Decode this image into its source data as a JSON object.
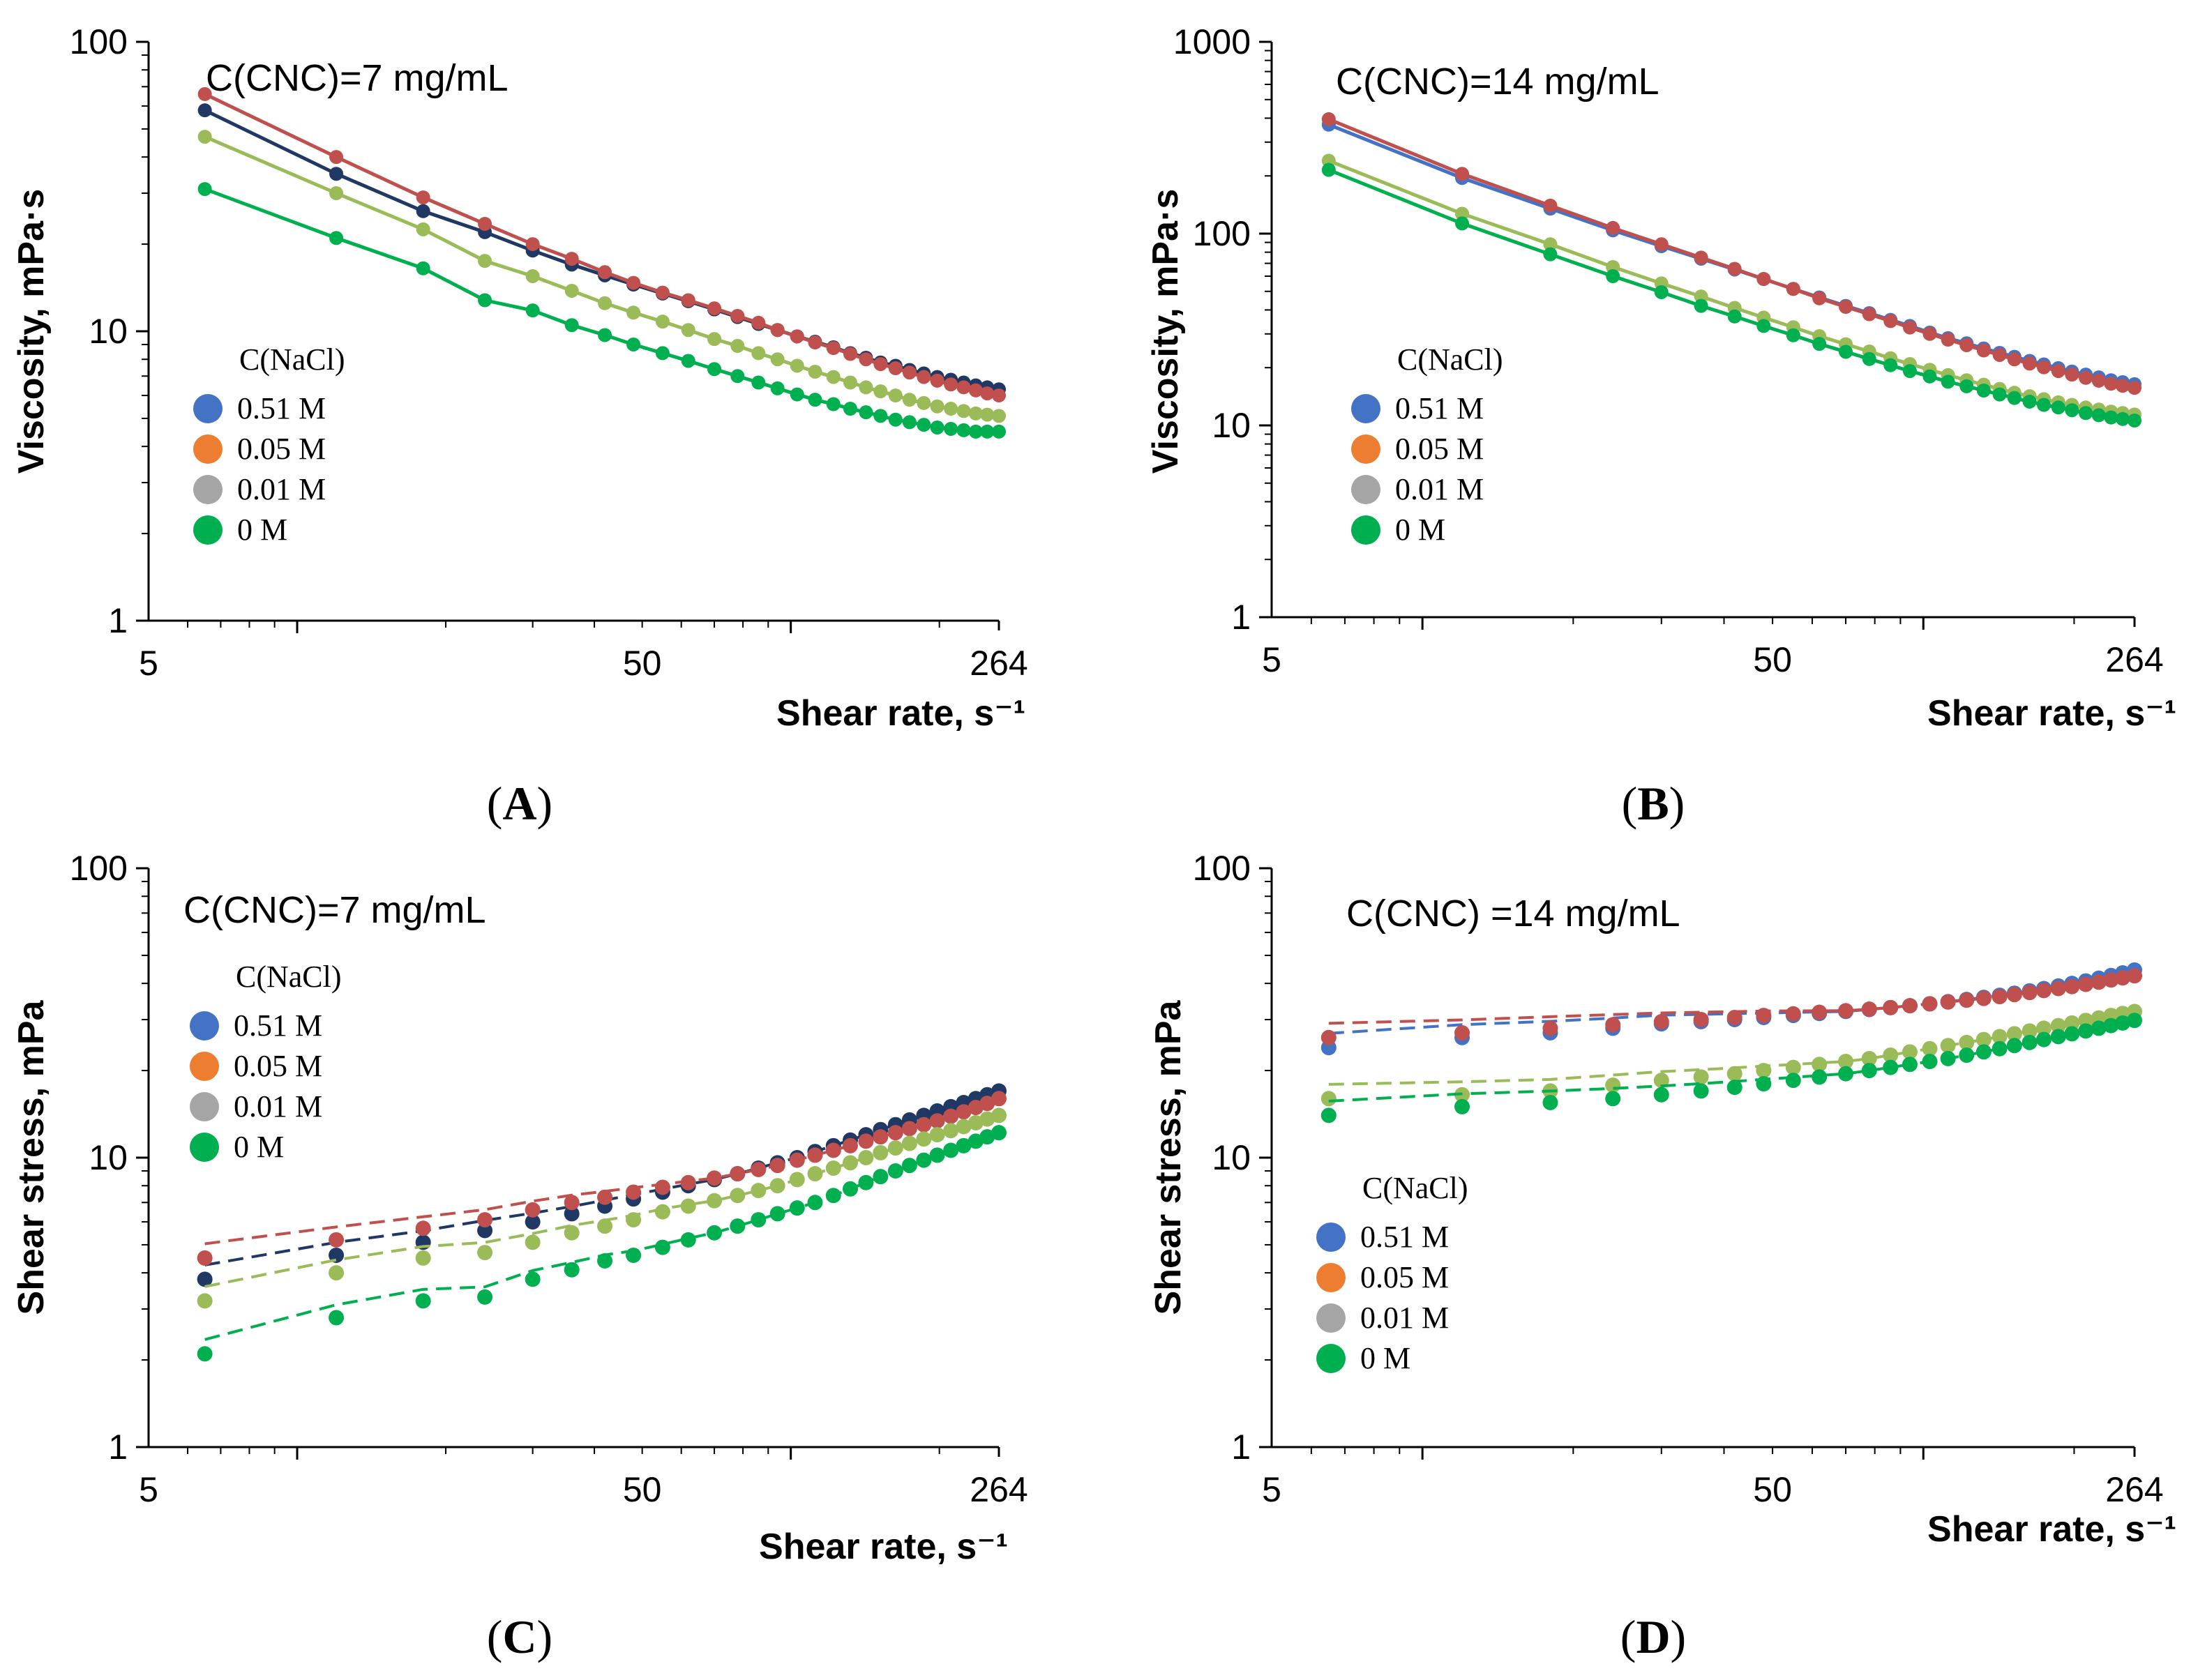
{
  "figure": {
    "colors": {
      "blue": "#4472c4",
      "navy": "#203864",
      "red": "#c0504d",
      "orange": "#ed7d31",
      "gray": "#a5a5a5",
      "lightgreen": "#9bbb59",
      "green": "#00b050"
    }
  },
  "chart_data": [
    {
      "id": "A",
      "type": "line",
      "panel_label": "A",
      "annotation": "C(CNC)=7 mg/mL",
      "xlabel": "Shear rate, s⁻¹",
      "ylabel": "Viscosity, mPa·s",
      "xscale": "log",
      "yscale": "log",
      "xlim": [
        5,
        264
      ],
      "ylim": [
        1,
        100
      ],
      "x_ticks": [
        "5",
        "50",
        "264"
      ],
      "y_ticks": [
        "1",
        "10",
        "100"
      ],
      "legend": {
        "title": "C(NaCl)",
        "entries": [
          "0.51 M",
          "0.05 M",
          "0.01 M",
          "0 M"
        ],
        "marker_colors": [
          "#4472c4",
          "#ed7d31",
          "#a5a5a5",
          "#00b050"
        ],
        "position": "middle-left"
      },
      "x": [
        6.5,
        12,
        18,
        24,
        30,
        36,
        42,
        48,
        55,
        62,
        70,
        78,
        86,
        94,
        103,
        112,
        122,
        132,
        142,
        152,
        163,
        174,
        186,
        198,
        211,
        224,
        237,
        250,
        264
      ],
      "series": [
        {
          "name": "0.51 M",
          "line_color": "#203864",
          "marker_color": "#203864",
          "values": [
            58,
            35,
            26,
            22,
            19,
            17,
            15.6,
            14.5,
            13.5,
            12.7,
            11.9,
            11.2,
            10.6,
            10.1,
            9.6,
            9.2,
            8.8,
            8.4,
            8.1,
            7.8,
            7.6,
            7.35,
            7.15,
            6.95,
            6.8,
            6.65,
            6.5,
            6.4,
            6.3
          ]
        },
        {
          "name": "0.05 M",
          "line_color": "#c0504d",
          "marker_color": "#c0504d",
          "values": [
            66,
            40,
            29,
            23.5,
            20,
            17.8,
            16,
            14.7,
            13.6,
            12.8,
            12,
            11.3,
            10.7,
            10.1,
            9.6,
            9.15,
            8.75,
            8.35,
            8.0,
            7.7,
            7.45,
            7.2,
            6.95,
            6.75,
            6.55,
            6.4,
            6.25,
            6.1,
            6.0
          ]
        },
        {
          "name": "0.01 M",
          "line_color": "#9bbb59",
          "marker_color": "#9bbb59",
          "values": [
            47,
            30,
            22.5,
            17.5,
            15.5,
            13.8,
            12.5,
            11.6,
            10.8,
            10.1,
            9.4,
            8.9,
            8.4,
            8.0,
            7.6,
            7.25,
            6.95,
            6.65,
            6.4,
            6.2,
            6.0,
            5.8,
            5.65,
            5.5,
            5.4,
            5.3,
            5.2,
            5.15,
            5.1
          ]
        },
        {
          "name": "0 M",
          "line_color": "#00b050",
          "marker_color": "#00b050",
          "values": [
            31,
            21,
            16.5,
            12.8,
            11.8,
            10.5,
            9.7,
            9.0,
            8.4,
            7.9,
            7.4,
            7.0,
            6.65,
            6.35,
            6.05,
            5.8,
            5.6,
            5.4,
            5.25,
            5.1,
            4.95,
            4.85,
            4.75,
            4.65,
            4.6,
            4.55,
            4.5,
            4.5,
            4.5
          ]
        }
      ]
    },
    {
      "id": "B",
      "type": "line",
      "panel_label": "B",
      "annotation": "C(CNC)=14 mg/mL",
      "xlabel": "Shear rate, s⁻¹",
      "ylabel": "Viscosity, mPa·s",
      "xscale": "log",
      "yscale": "log",
      "xlim": [
        5,
        264
      ],
      "ylim": [
        1,
        1000
      ],
      "x_ticks": [
        "5",
        "50",
        "264"
      ],
      "y_ticks": [
        "1",
        "10",
        "100",
        "1000"
      ],
      "legend": {
        "title": "C(NaCl)",
        "entries": [
          "0.51 M",
          "0.05 M",
          "0.01 M",
          "0 M"
        ],
        "marker_colors": [
          "#4472c4",
          "#ed7d31",
          "#a5a5a5",
          "#00b050"
        ],
        "position": "middle-left"
      },
      "x": [
        6.5,
        12,
        18,
        24,
        30,
        36,
        42,
        48,
        55,
        62,
        70,
        78,
        86,
        94,
        103,
        112,
        122,
        132,
        142,
        152,
        163,
        174,
        186,
        198,
        211,
        224,
        237,
        250,
        264
      ],
      "series": [
        {
          "name": "0.51 M",
          "line_color": "#4472c4",
          "marker_color": "#4472c4",
          "values": [
            370,
            195,
            135,
            104,
            86,
            74,
            65,
            58,
            51.5,
            46.5,
            42,
            38.5,
            35.5,
            33,
            30.5,
            28.5,
            26.8,
            25.2,
            23.9,
            22.8,
            21.7,
            20.8,
            19.9,
            19.1,
            18.4,
            17.8,
            17.2,
            16.8,
            16.4
          ]
        },
        {
          "name": "0.05 M",
          "line_color": "#c0504d",
          "marker_color": "#c0504d",
          "values": [
            395,
            205,
            140,
            107,
            88,
            75,
            65.5,
            58,
            51.5,
            46,
            41.5,
            38,
            35,
            32.4,
            30,
            28,
            26.2,
            24.6,
            23.3,
            22.1,
            21.0,
            20.1,
            19.2,
            18.4,
            17.7,
            17.1,
            16.5,
            16.1,
            15.7
          ]
        },
        {
          "name": "0.01 M",
          "line_color": "#9bbb59",
          "marker_color": "#9bbb59",
          "values": [
            240,
            127,
            88,
            67,
            55,
            47,
            41,
            36.5,
            32.5,
            29.2,
            26.5,
            24.3,
            22.4,
            20.9,
            19.5,
            18.3,
            17.2,
            16.3,
            15.5,
            14.8,
            14.2,
            13.7,
            13.2,
            12.8,
            12.4,
            12.1,
            11.8,
            11.6,
            11.4
          ]
        },
        {
          "name": "0 M",
          "line_color": "#00b050",
          "marker_color": "#00b050",
          "values": [
            215,
            113,
            78,
            60,
            49.5,
            42,
            37,
            33,
            29.5,
            26.6,
            24.2,
            22.2,
            20.6,
            19.2,
            18.0,
            16.9,
            16.0,
            15.2,
            14.5,
            13.9,
            13.3,
            12.8,
            12.4,
            12.0,
            11.6,
            11.3,
            11.0,
            10.8,
            10.6
          ]
        }
      ]
    },
    {
      "id": "C",
      "type": "scatter",
      "panel_label": "C",
      "annotation": "C(CNC)=7 mg/mL",
      "xlabel": "Shear rate, s⁻¹",
      "ylabel": "Shear stress, mPa",
      "xscale": "log",
      "yscale": "log",
      "xlim": [
        5,
        264
      ],
      "ylim": [
        1,
        100
      ],
      "x_ticks": [
        "5",
        "50",
        "264"
      ],
      "y_ticks": [
        "1",
        "10",
        "100"
      ],
      "fit_lines": "dashed",
      "legend": {
        "title": "C(NaCl)",
        "entries": [
          "0.51 M",
          "0.05 M",
          "0.01 M",
          "0 M"
        ],
        "marker_colors": [
          "#4472c4",
          "#ed7d31",
          "#a5a5a5",
          "#00b050"
        ],
        "position": "upper-left"
      },
      "x": [
        6.5,
        12,
        18,
        24,
        30,
        36,
        42,
        48,
        55,
        62,
        70,
        78,
        86,
        94,
        103,
        112,
        122,
        132,
        142,
        152,
        163,
        174,
        186,
        198,
        211,
        224,
        237,
        250,
        264
      ],
      "series": [
        {
          "name": "0.51 M",
          "marker_color": "#203864",
          "line_color": "#203864",
          "values": [
            3.8,
            4.6,
            5.1,
            5.6,
            6.0,
            6.4,
            6.8,
            7.2,
            7.6,
            8.0,
            8.4,
            8.8,
            9.2,
            9.6,
            10.0,
            10.5,
            11.0,
            11.5,
            12.0,
            12.5,
            13.0,
            13.5,
            14.0,
            14.5,
            15.0,
            15.5,
            16.0,
            16.5,
            17.0
          ]
        },
        {
          "name": "0.05 M",
          "marker_color": "#c0504d",
          "line_color": "#c0504d",
          "values": [
            4.5,
            5.2,
            5.7,
            6.1,
            6.6,
            7.0,
            7.3,
            7.6,
            7.9,
            8.2,
            8.5,
            8.8,
            9.1,
            9.4,
            9.8,
            10.2,
            10.6,
            11.0,
            11.4,
            11.8,
            12.2,
            12.6,
            13.0,
            13.4,
            13.9,
            14.4,
            14.9,
            15.4,
            16.0
          ]
        },
        {
          "name": "0.01 M",
          "marker_color": "#9bbb59",
          "line_color": "#9bbb59",
          "values": [
            3.2,
            4.0,
            4.5,
            4.7,
            5.1,
            5.5,
            5.8,
            6.1,
            6.5,
            6.8,
            7.1,
            7.4,
            7.7,
            8.0,
            8.4,
            8.8,
            9.2,
            9.6,
            10.0,
            10.4,
            10.8,
            11.2,
            11.6,
            12.0,
            12.4,
            12.8,
            13.2,
            13.6,
            14.0
          ]
        },
        {
          "name": "0 M",
          "marker_color": "#00b050",
          "line_color": "#00b050",
          "values": [
            2.1,
            2.8,
            3.2,
            3.3,
            3.8,
            4.1,
            4.4,
            4.6,
            4.9,
            5.2,
            5.5,
            5.8,
            6.1,
            6.4,
            6.7,
            7.0,
            7.4,
            7.8,
            8.2,
            8.6,
            9.0,
            9.4,
            9.8,
            10.2,
            10.6,
            11.0,
            11.4,
            11.8,
            12.2
          ]
        }
      ]
    },
    {
      "id": "D",
      "type": "scatter",
      "panel_label": "D",
      "annotation": "C(CNC) =14 mg/mL",
      "xlabel": "Shear rate, s⁻¹",
      "ylabel": "Shear stress, mPa",
      "xscale": "log",
      "yscale": "log",
      "xlim": [
        5,
        264
      ],
      "ylim": [
        1,
        100
      ],
      "x_ticks": [
        "5",
        "50",
        "264"
      ],
      "y_ticks": [
        "1",
        "10",
        "100"
      ],
      "fit_lines": "dashed",
      "legend": {
        "title": "C(NaCl)",
        "entries": [
          "0.51 M",
          "0.05 M",
          "0.01 M",
          "0 M"
        ],
        "marker_colors": [
          "#4472c4",
          "#ed7d31",
          "#a5a5a5",
          "#00b050"
        ],
        "position": "middle-left"
      },
      "x": [
        6.5,
        12,
        18,
        24,
        30,
        36,
        42,
        48,
        55,
        62,
        70,
        78,
        86,
        94,
        103,
        112,
        122,
        132,
        142,
        152,
        163,
        174,
        186,
        198,
        211,
        224,
        237,
        250,
        264
      ],
      "series": [
        {
          "name": "0.51 M",
          "marker_color": "#4472c4",
          "line_color": "#4472c4",
          "values": [
            24,
            26,
            27,
            28,
            29,
            29.5,
            30,
            30.5,
            31,
            31.5,
            32,
            32.5,
            33,
            33.5,
            34,
            34.6,
            35.2,
            35.8,
            36.4,
            37,
            37.7,
            38.4,
            39.2,
            40,
            40.8,
            41.7,
            42.6,
            43.5,
            44.5
          ]
        },
        {
          "name": "0.05 M",
          "marker_color": "#c0504d",
          "line_color": "#c0504d",
          "values": [
            26,
            27,
            28,
            28.8,
            29.5,
            30,
            30.5,
            31,
            31.4,
            31.8,
            32.2,
            32.6,
            33,
            33.5,
            34,
            34.5,
            35,
            35.5,
            36,
            36.6,
            37.2,
            37.8,
            38.4,
            39,
            39.7,
            40.4,
            41.1,
            41.8,
            42.5
          ]
        },
        {
          "name": "0.01 M",
          "marker_color": "#9bbb59",
          "line_color": "#9bbb59",
          "values": [
            16,
            16.5,
            17,
            17.8,
            18.5,
            19,
            19.5,
            20,
            20.5,
            21,
            21.5,
            22,
            22.6,
            23.2,
            23.8,
            24.4,
            25,
            25.6,
            26.2,
            26.8,
            27.4,
            28,
            28.6,
            29.2,
            29.8,
            30.4,
            31,
            31.5,
            32
          ]
        },
        {
          "name": "0 M",
          "marker_color": "#00b050",
          "line_color": "#00b050",
          "values": [
            14,
            15,
            15.5,
            16,
            16.5,
            17,
            17.5,
            18,
            18.5,
            19,
            19.5,
            20,
            20.5,
            21,
            21.5,
            22,
            22.6,
            23.2,
            23.8,
            24.4,
            25,
            25.6,
            26.2,
            26.8,
            27.4,
            28,
            28.6,
            29.2,
            29.8
          ]
        }
      ]
    }
  ]
}
